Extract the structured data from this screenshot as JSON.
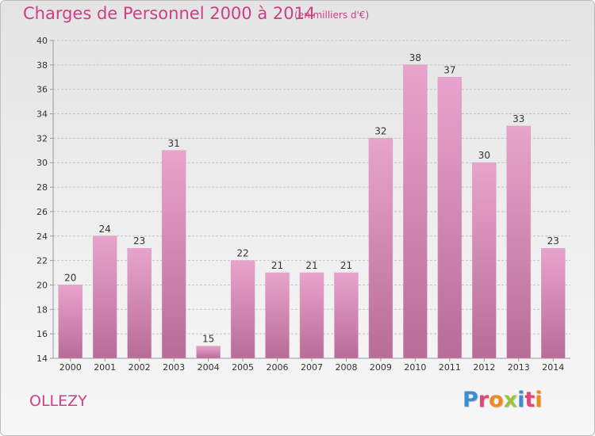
{
  "title": "Charges de Personnel 2000 à 2014",
  "subtitle": "(en milliers d'€)",
  "commune": "OLLEZY",
  "logo": {
    "text": "Proxiti",
    "letters": [
      {
        "ch": "P",
        "color": "#3a8fd0"
      },
      {
        "ch": "r",
        "color": "#e0467c"
      },
      {
        "ch": "o",
        "color": "#f08a1c"
      },
      {
        "ch": "x",
        "color": "#9bc53d"
      },
      {
        "ch": "i",
        "color": "#3a8fd0"
      },
      {
        "ch": "t",
        "color": "#e0467c"
      },
      {
        "ch": "i",
        "color": "#f08a1c"
      }
    ]
  },
  "colors": {
    "bar_top": "#e8a4cc",
    "bar_bottom": "#b86c98",
    "title": "#cc3f84",
    "axis": "#999999",
    "grid": "#c4c4c4",
    "tick_text": "#333333"
  },
  "chart_data": {
    "type": "bar",
    "title": "Charges de Personnel 2000 à 2014",
    "subtitle": "(en milliers d'€)",
    "categories": [
      "2000",
      "2001",
      "2002",
      "2003",
      "2004",
      "2005",
      "2006",
      "2007",
      "2008",
      "2009",
      "2010",
      "2011",
      "2012",
      "2013",
      "2014"
    ],
    "values": [
      20,
      24,
      23,
      31,
      15,
      22,
      21,
      21,
      21,
      32,
      38,
      37,
      30,
      33,
      23
    ],
    "ylim": [
      14,
      40
    ],
    "yticks": [
      14,
      16,
      18,
      20,
      22,
      24,
      26,
      28,
      30,
      32,
      34,
      36,
      38,
      40
    ],
    "grid": true,
    "data_labels": true
  }
}
